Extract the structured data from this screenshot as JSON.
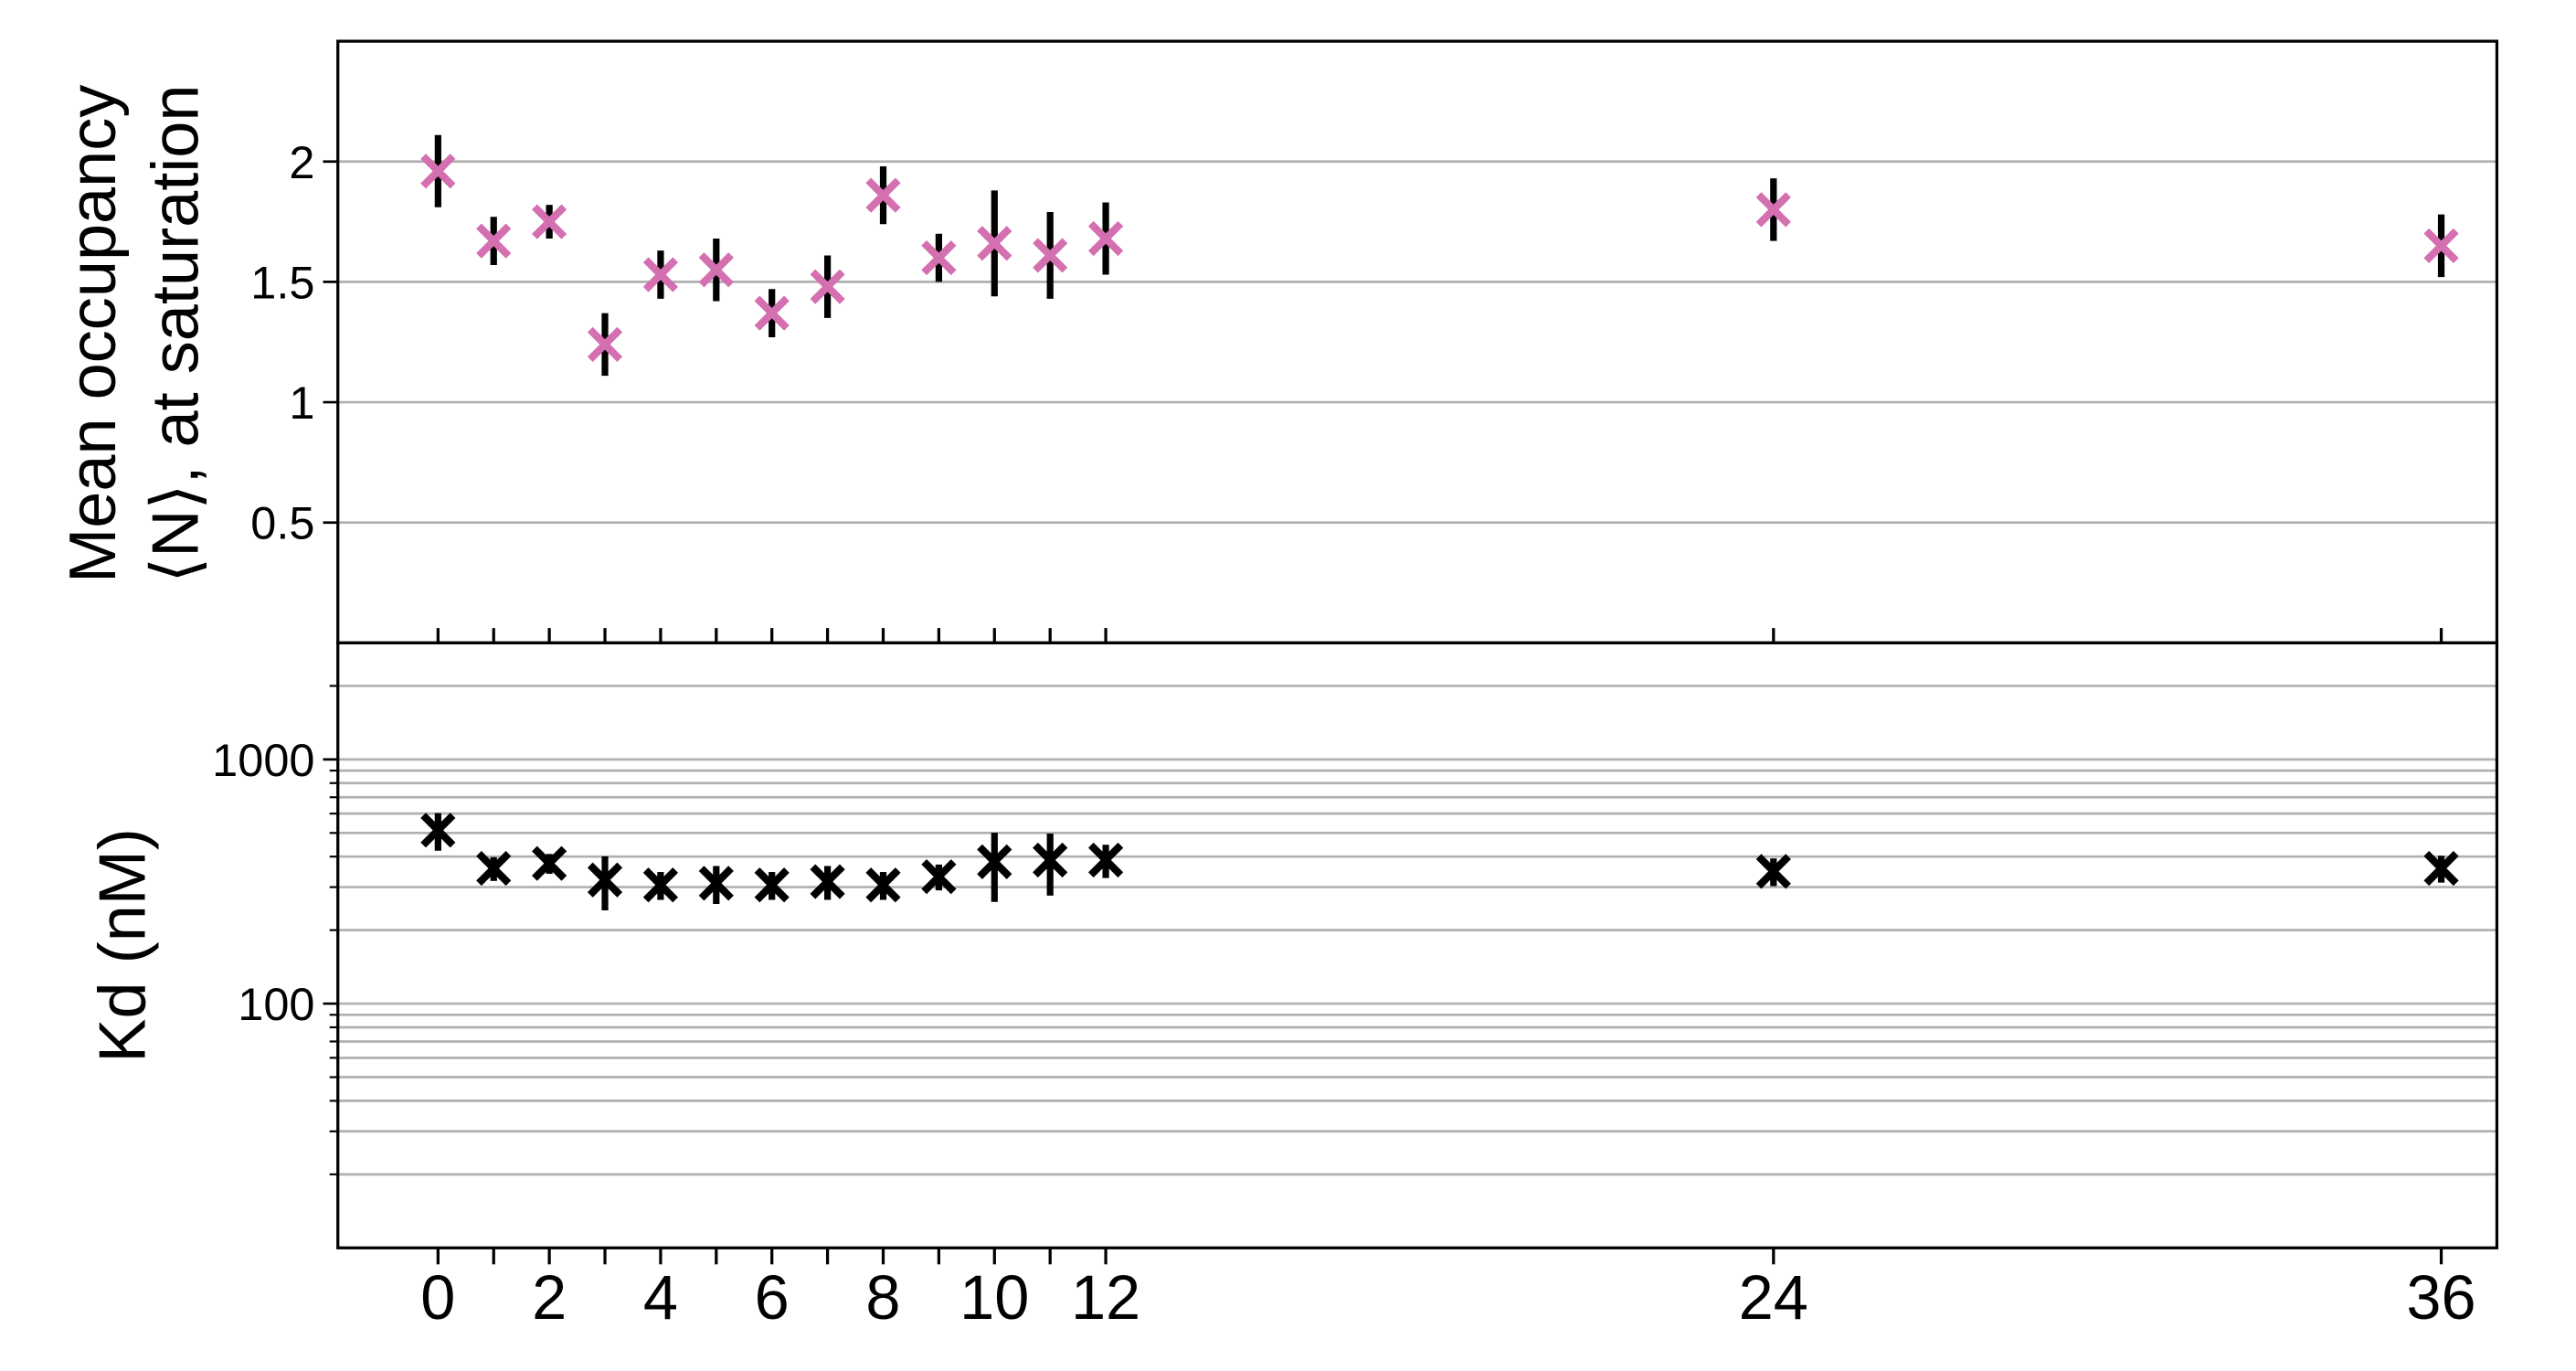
{
  "chart_data": [
    {
      "type": "scatter",
      "ylabel": [
        "Mean occupancy",
        "⟨N⟩, at saturation"
      ],
      "x": [
        0,
        1,
        2,
        3,
        4,
        5,
        6,
        7,
        8,
        9,
        10,
        11,
        12,
        24,
        36
      ],
      "series": [
        {
          "color": "#d46fb0",
          "error_color": "#000000",
          "values": [
            1.96,
            1.67,
            1.75,
            1.24,
            1.53,
            1.55,
            1.37,
            1.48,
            1.86,
            1.6,
            1.66,
            1.61,
            1.68,
            1.8,
            1.65
          ],
          "errors": [
            0.15,
            0.1,
            0.07,
            0.13,
            0.1,
            0.13,
            0.1,
            0.13,
            0.12,
            0.1,
            0.22,
            0.18,
            0.15,
            0.13,
            0.13
          ]
        }
      ],
      "xlim": [
        -1.8,
        37
      ],
      "ylim": [
        0,
        2.5
      ],
      "xticks": [
        0,
        1,
        2,
        3,
        4,
        5,
        6,
        7,
        8,
        9,
        10,
        11,
        12,
        24,
        36
      ],
      "yticks": [
        0.5,
        1,
        1.5,
        2
      ],
      "grid": true
    },
    {
      "type": "scatter",
      "log_y": true,
      "ylabel": "Kd (nM)",
      "x": [
        0,
        1,
        2,
        3,
        4,
        5,
        6,
        7,
        8,
        9,
        10,
        11,
        12,
        24,
        36
      ],
      "series": [
        {
          "color": "#000000",
          "error_color": "#000000",
          "values": [
            513,
            358,
            375,
            321,
            306,
            311,
            306,
            316,
            306,
            331,
            381,
            387,
            387,
            348,
            358
          ],
          "errors": [
            90,
            40,
            35,
            80,
            40,
            55,
            40,
            50,
            40,
            40,
            120,
            110,
            60,
            45,
            45
          ]
        }
      ],
      "xlim": [
        -1.8,
        37
      ],
      "ylim": [
        10,
        3000
      ],
      "xticks": [
        0,
        2,
        4,
        6,
        8,
        10,
        12,
        24,
        36
      ],
      "xminorticks": [
        1,
        3,
        5,
        7,
        9,
        11
      ],
      "yticks": [
        100,
        1000
      ],
      "yminorticks": [
        20,
        30,
        40,
        50,
        60,
        70,
        80,
        90,
        200,
        300,
        400,
        500,
        600,
        700,
        800,
        900,
        2000
      ],
      "grid": true
    }
  ]
}
